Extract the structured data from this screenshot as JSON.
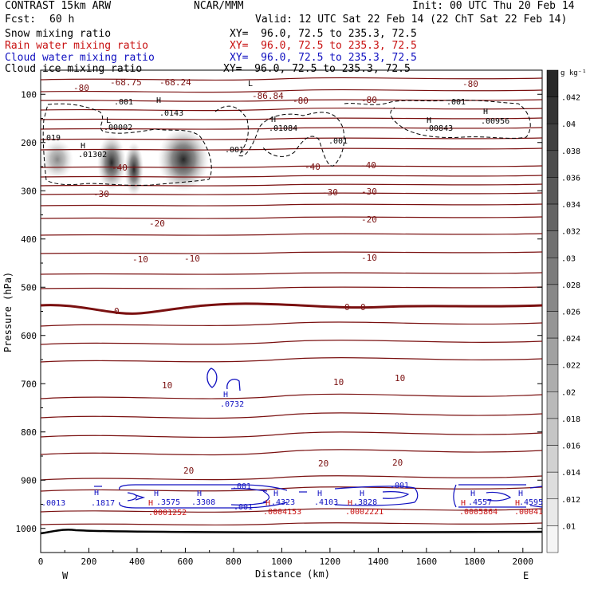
{
  "header": {
    "model": "CONTRAST 15km ARW",
    "org": "NCAR/MMM",
    "init": "Init: 00 UTC Thu 20 Feb 14",
    "fcst_label": "Fcst:",
    "fcst_value": "60 h",
    "valid": "Valid: 12 UTC Sat 22 Feb 14 (22 ChT Sat 22 Feb 14)",
    "fields": [
      {
        "name": "Snow mixing ratio",
        "xy": "XY=  96.0, 72.5 to 235.3, 72.5",
        "color": "#000000"
      },
      {
        "name": "Rain water mixing ratio",
        "xy": "XY=  96.0, 72.5 to 235.3, 72.5",
        "color": "#c81010"
      },
      {
        "name": "Cloud water mixing ratio",
        "xy": "XY=  96.0, 72.5 to 235.3, 72.5",
        "color": "#1010c0"
      },
      {
        "name": "Cloud ice mixing ratio",
        "xy": "XY=  96.0, 72.5 to 235.3, 72.5",
        "color": "#000000"
      }
    ]
  },
  "chart_data": {
    "type": "cross-section",
    "xlabel": "Distance (km)",
    "ylabel": "Pressure (hPa)",
    "x_ticks": [
      0,
      200,
      400,
      600,
      800,
      1000,
      1200,
      1400,
      1600,
      1800,
      2000
    ],
    "x_range": [
      0,
      2080
    ],
    "y_ticks": [
      100,
      200,
      300,
      400,
      500,
      600,
      700,
      800,
      900,
      1000
    ],
    "y_range": [
      50,
      1050
    ],
    "direction_left": "W",
    "direction_right": "E",
    "colorbar": {
      "unit": "g kg⁻¹",
      "ticks": [
        ".042",
        ".04",
        ".038",
        ".036",
        ".034",
        ".032",
        ".03",
        ".028",
        ".026",
        ".024",
        ".022",
        ".02",
        ".018",
        ".016",
        ".014",
        ".012",
        ".01"
      ]
    },
    "temperature_labels": [
      "-80",
      "-68.75",
      "-68.24",
      "-86.84",
      "-80",
      "-80",
      "-80",
      "-40",
      "-40",
      "-40",
      "-30",
      "-30",
      "-30",
      "-20",
      "-20",
      "-10",
      "-10",
      "-10",
      "0",
      "0",
      "0",
      "10",
      "10",
      "10",
      "20",
      "20",
      "20"
    ],
    "snow_annotations": [
      ".001",
      ".0143",
      ".00002",
      ".01302",
      ".01084",
      ".001",
      ".001",
      ".00843",
      ".00956",
      ".001",
      ".019"
    ],
    "cloud_water_annotations": [
      ".0732",
      ".0013",
      ".1817",
      ".3575",
      ".3308",
      ".001",
      ".001",
      ".4323",
      ".4103",
      ".3828",
      ".001",
      ".4557",
      ".4595"
    ],
    "rain_annotations": [
      ".0001252",
      ".0004153",
      ".0002221",
      ".0005864",
      ".00041"
    ],
    "max_marker": "H",
    "min_marker": "L"
  }
}
